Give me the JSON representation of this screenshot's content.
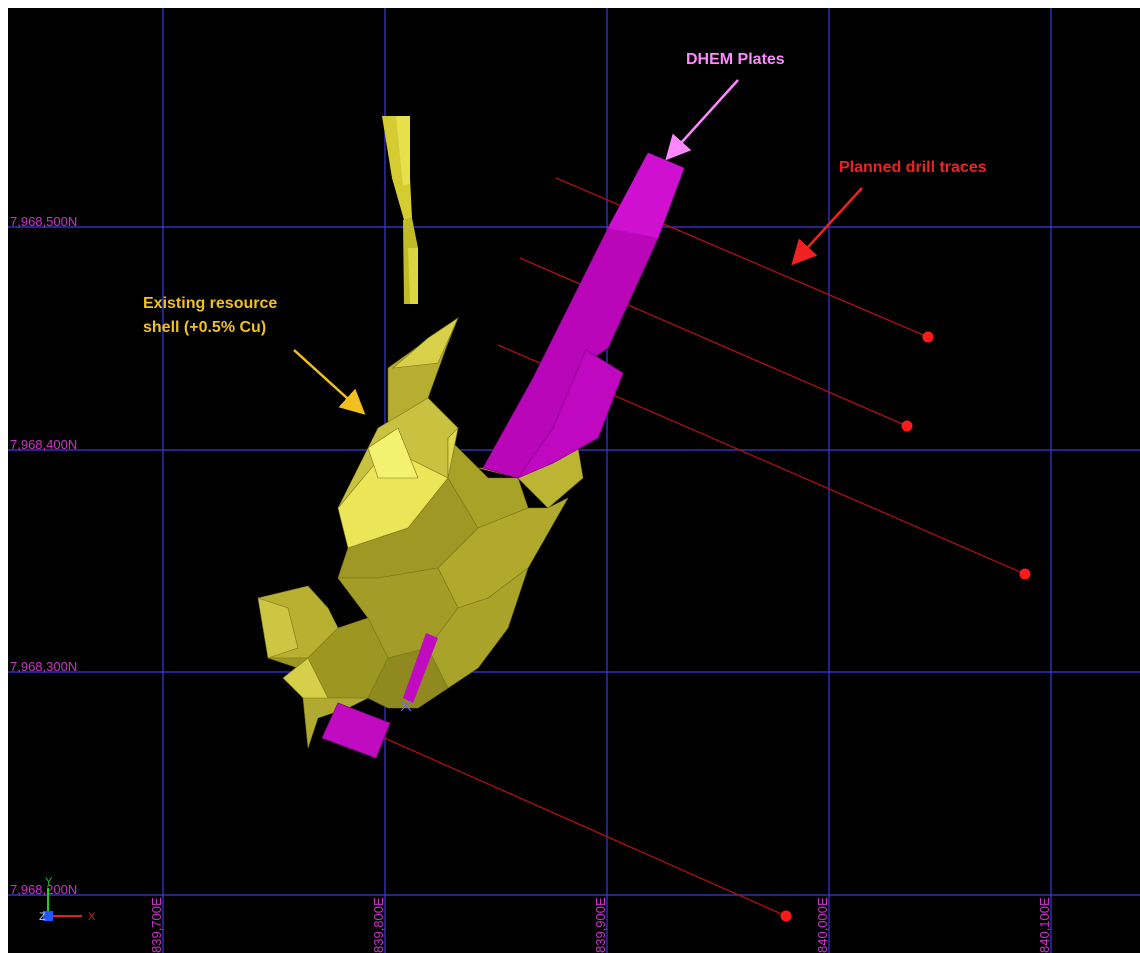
{
  "grid": {
    "northing_labels": [
      "7,968,500N",
      "7,968,400N",
      "7,968,300N",
      "7,968,200N"
    ],
    "easting_labels": [
      "839,700E",
      "839,800E",
      "839,900E",
      "840,000E",
      "840,100E"
    ]
  },
  "annotations": {
    "dhem": "DHEM Plates",
    "drill": "Planned drill traces",
    "resource_line1": "Existing resource",
    "resource_line2": "shell (+0.5% Cu)"
  },
  "axes_indicator": {
    "y": "Y",
    "z": "Z",
    "x": "X"
  },
  "colors": {
    "grid": "#3a3adc",
    "grid_label": "#cc33cc",
    "dhem": "#cc11cc",
    "drill": "#cc1111",
    "shell": "#b8b238",
    "dhem_label": "#ff88ff",
    "drill_label": "#ee2222",
    "resource_label": "#f0c020"
  }
}
